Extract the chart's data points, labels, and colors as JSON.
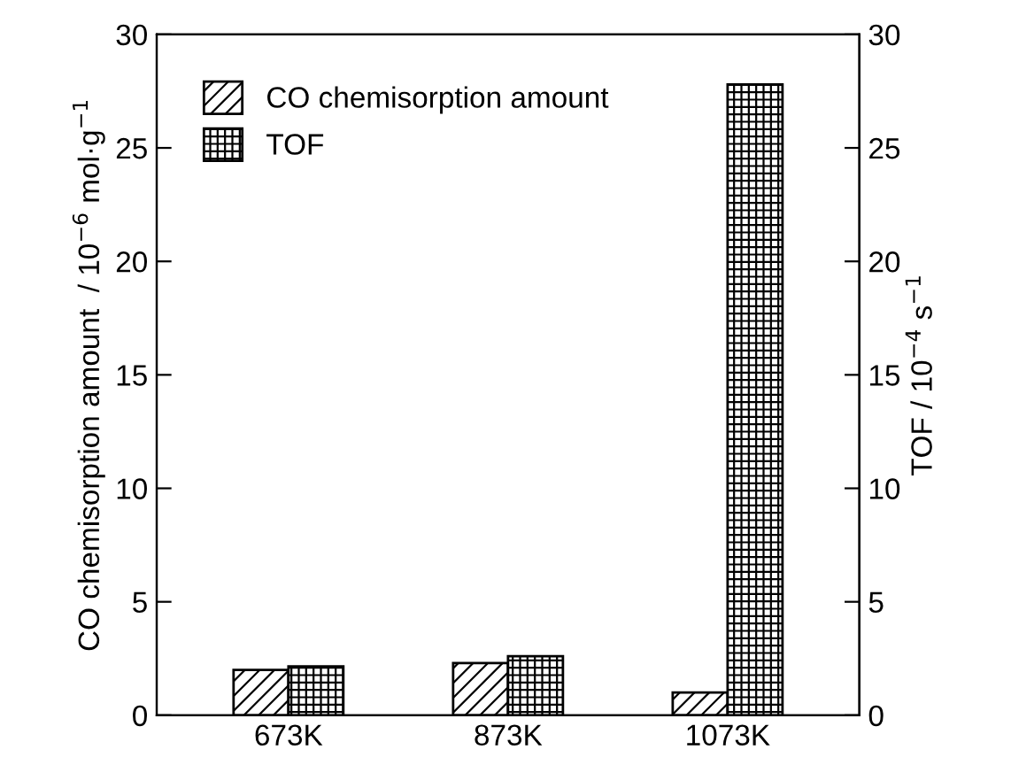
{
  "chart_data": {
    "type": "bar",
    "categories": [
      "673K",
      "873K",
      "1073K"
    ],
    "series": [
      {
        "name": "CO chemisorption amount",
        "color": "#000000",
        "values": [
          2.0,
          2.3,
          1.0
        ]
      },
      {
        "name": "TOF",
        "color": "#000000",
        "values": [
          2.15,
          2.6,
          27.8
        ],
        "axis": "y2"
      }
    ],
    "ylabel": "CO chemisorption amount  / 10$^{−6}$ mol·g$^{−1}$",
    "y2label": "TOF / 10$^{−4}$ s$^{−1}$",
    "ylim": [
      0,
      30
    ],
    "yticks": [
      0,
      5,
      10,
      15,
      20,
      25,
      30
    ],
    "y2lim": [
      0,
      30
    ],
    "y2ticks": [
      0,
      5,
      10,
      15,
      20,
      25,
      30
    ],
    "legend": "top left",
    "grid": false
  }
}
